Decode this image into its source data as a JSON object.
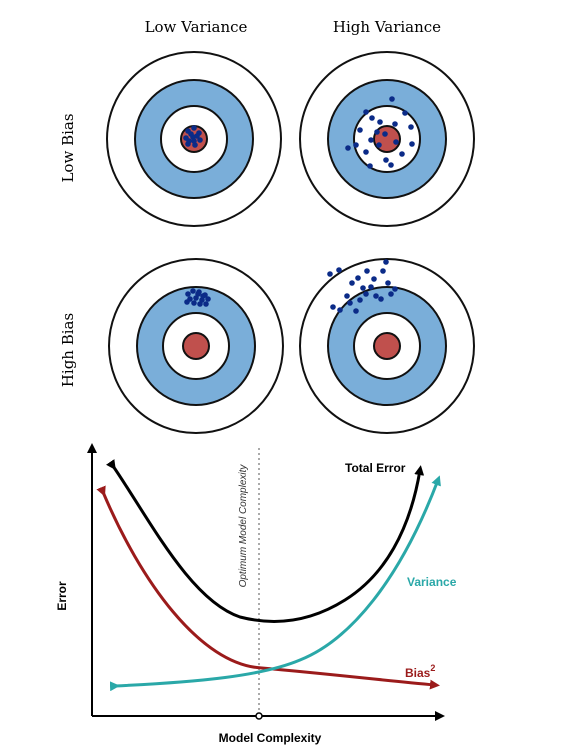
{
  "targets": {
    "col_labels": [
      "Low Variance",
      "High Variance"
    ],
    "row_labels": [
      "Low Bias",
      "High Bias"
    ],
    "colors": {
      "ring_outline": "#111111",
      "ring_blue": "#7aaed9",
      "bullseye": "#c0504d",
      "dot": "#0b2b88"
    }
  },
  "error_plot": {
    "x_label": "Model Complexity",
    "y_label": "Error",
    "optimum_label": "Optimum Model Complexity",
    "curves": {
      "total": {
        "label": "Total Error",
        "color": "#000000"
      },
      "variance": {
        "label": "Variance",
        "color": "#2aa8a8"
      },
      "bias": {
        "label": "Bias",
        "superscript": "2",
        "color": "#9b1b1b"
      }
    }
  }
}
